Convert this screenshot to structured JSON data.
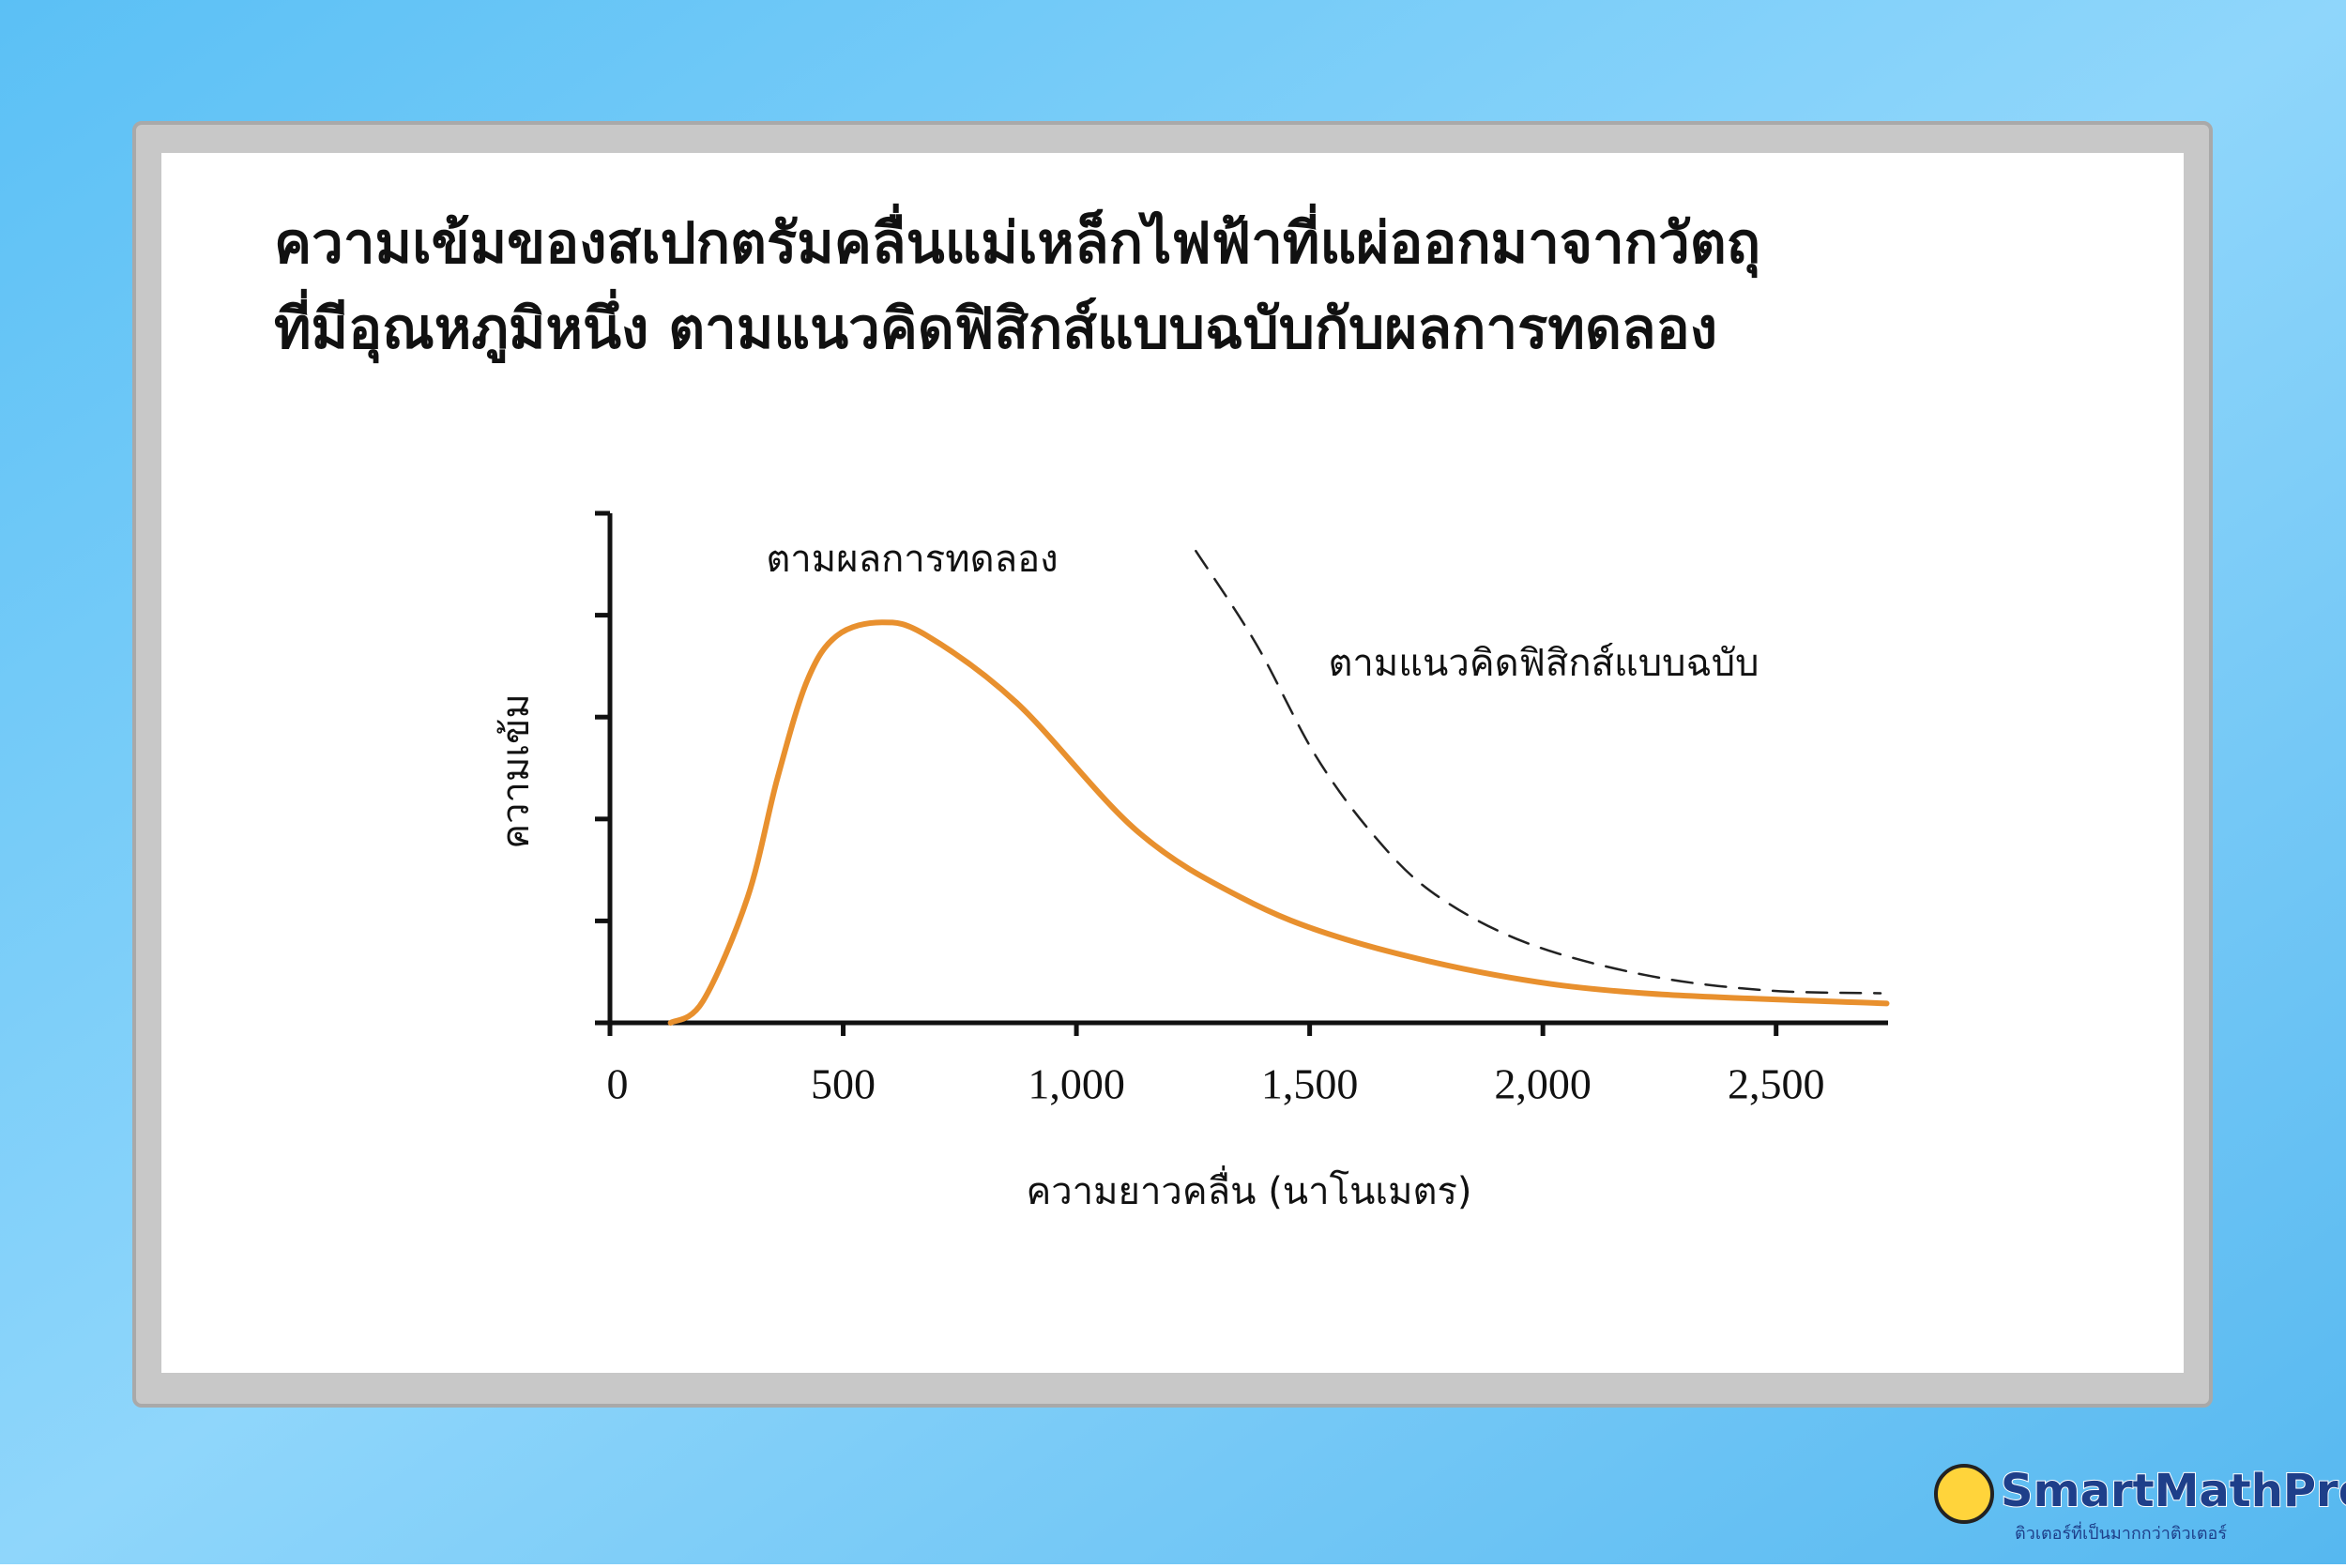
{
  "chart_data": {
    "type": "line",
    "title": [
      "ความเข้มของสเปกตรัมคลื่นแม่เหล็กไฟฟ้าที่แผ่ออกมาจากวัตถุ",
      "ที่มีอุณหภูมิหนึ่ง ตามแนวคิดฟิสิกส์แบบฉบับกับผลการทดลอง"
    ],
    "xlabel": "ความยาวคลื่น (นาโนเมตร)",
    "ylabel": "ความเข้ม",
    "xlim": [
      0,
      2740
    ],
    "ylim": [
      0,
      5
    ],
    "xticks": [
      0,
      500,
      {
        "value": 1000,
        "label": "1,000"
      },
      {
        "value": 1500,
        "label": "1,500"
      },
      {
        "value": 2000,
        "label": "2,000"
      },
      {
        "value": 2500,
        "label": "2,500"
      }
    ],
    "yticks": [
      0,
      1,
      2,
      3,
      4,
      5
    ],
    "series": [
      {
        "name": "ตามผลการทดลอง",
        "color": "#e8902e",
        "style": "solid",
        "x": [
          130,
          199,
          295,
          359,
          423,
          487,
          583,
          679,
          872,
          1128,
          1353,
          1577,
          1897,
          2218,
          2737
        ],
        "values": [
          0,
          0.21,
          1.23,
          2.4,
          3.36,
          3.8,
          3.93,
          3.8,
          3.14,
          1.89,
          1.23,
          0.82,
          0.47,
          0.29,
          0.19
        ]
      },
      {
        "name": "ตามแนวคิดฟิสิกส์แบบฉบับ",
        "color": "#222222",
        "style": "dashed",
        "x": [
          1256,
          1385,
          1513,
          1641,
          1769,
          1962,
          2218,
          2474,
          2724
        ],
        "values": [
          4.63,
          3.72,
          2.62,
          1.82,
          1.26,
          0.79,
          0.47,
          0.32,
          0.29
        ]
      }
    ]
  },
  "logo": {
    "name": "SmartMathPro",
    "tagline": "ติวเตอร์ที่เป็นมากกว่าติวเตอร์"
  }
}
